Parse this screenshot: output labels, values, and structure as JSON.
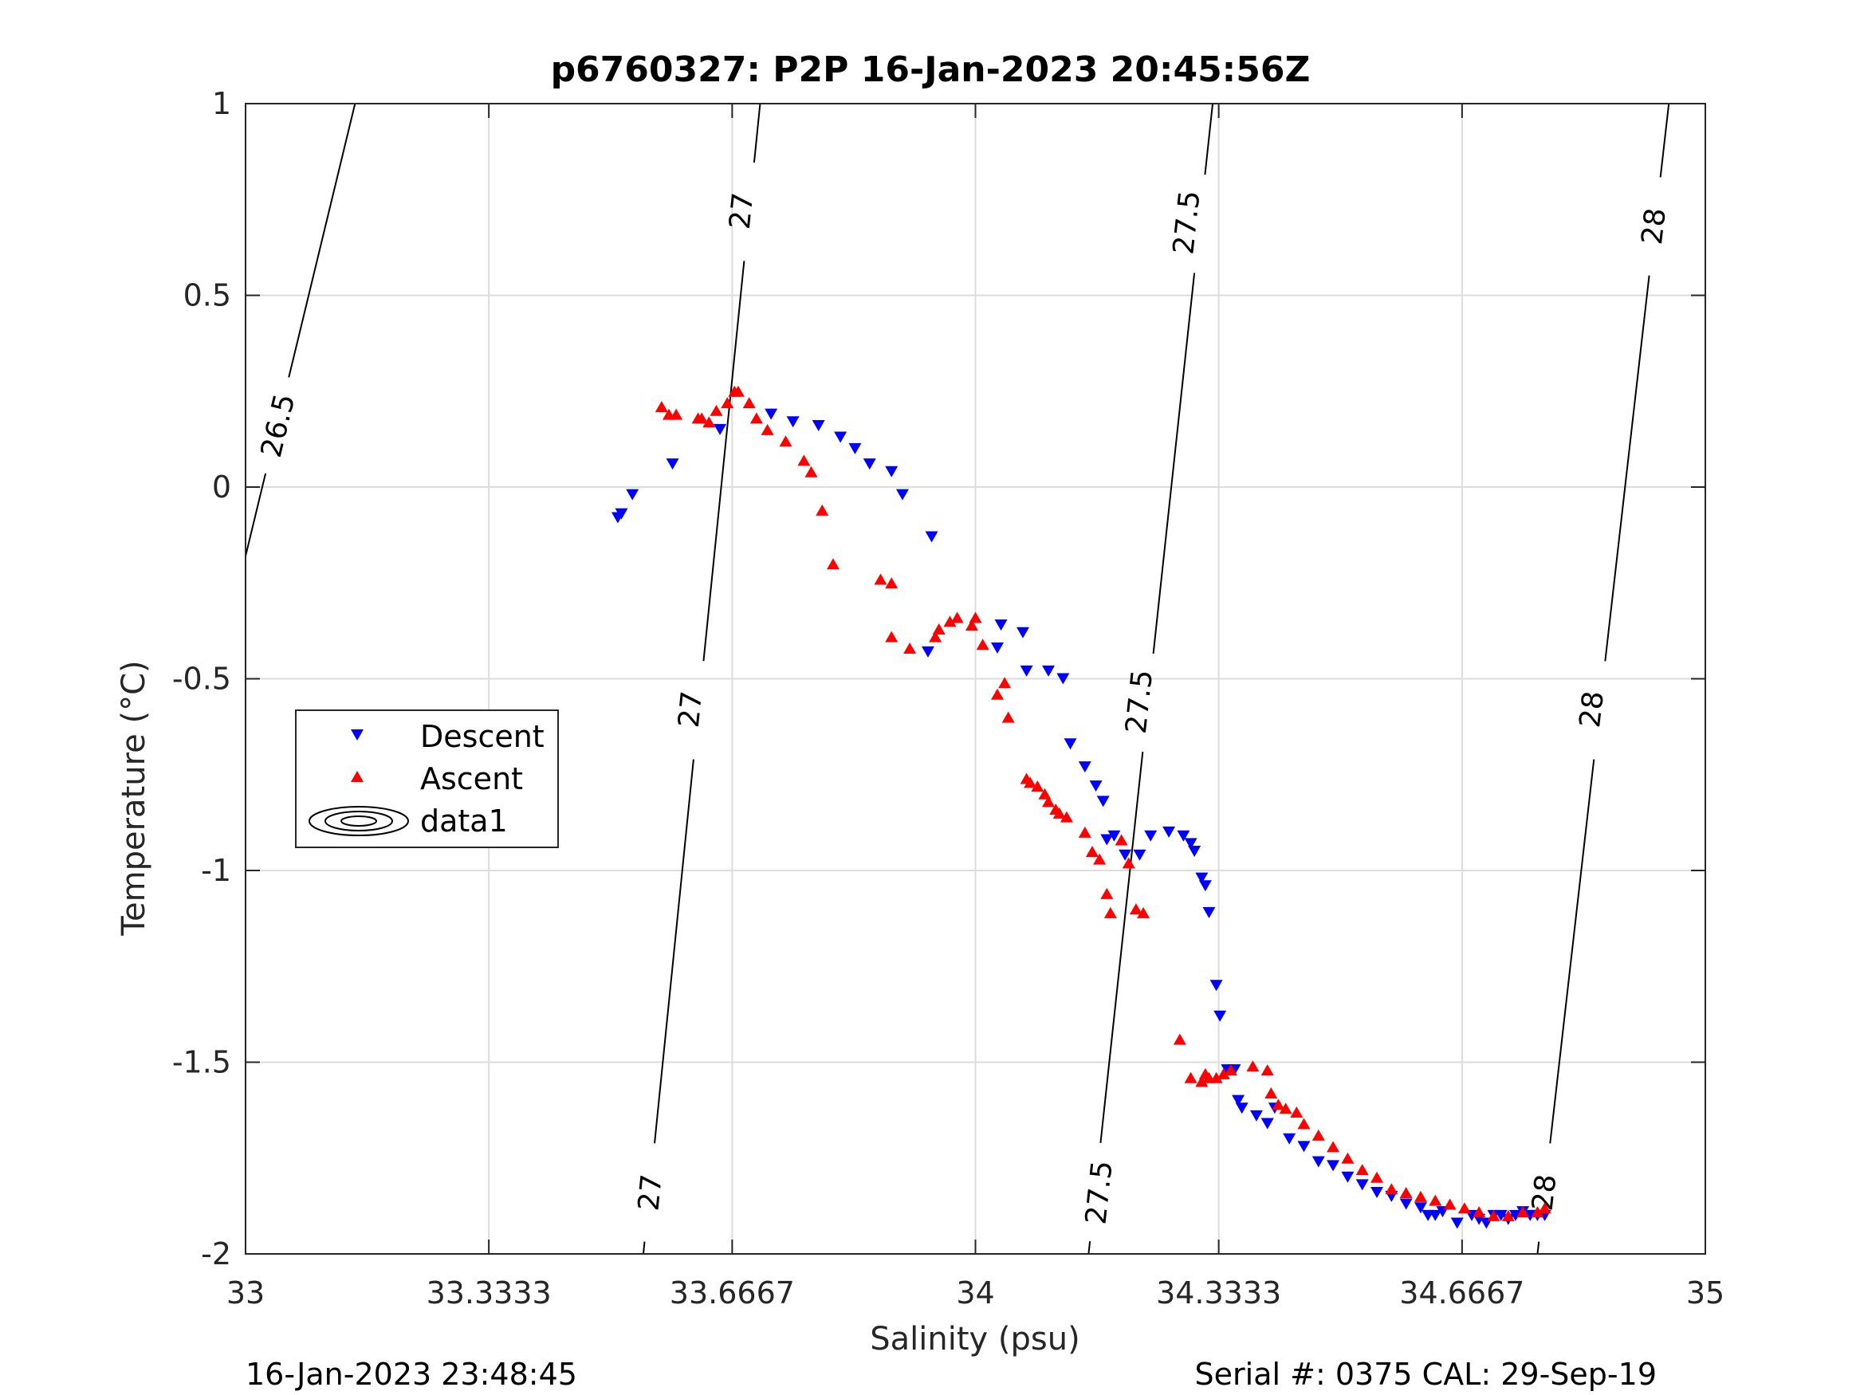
{
  "chart_data": {
    "type": "scatter",
    "title": "p6760327: P2P 16-Jan-2023 20:45:56Z",
    "xlabel": "Salinity (psu)",
    "ylabel": "Temperature (°C)",
    "xlim": [
      33,
      35
    ],
    "ylim": [
      -2,
      1
    ],
    "xticks": [
      33,
      33.3333,
      33.6667,
      34,
      34.3333,
      34.6667,
      35
    ],
    "xtick_labels": [
      "33",
      "33.3333",
      "33.6667",
      "34",
      "34.3333",
      "34.6667",
      "35"
    ],
    "yticks": [
      1,
      0.5,
      0,
      -0.5,
      -1,
      -1.5,
      -2
    ],
    "ytick_labels": [
      "1",
      "0.5",
      "0",
      "-0.5",
      "-1",
      "-1.5",
      "-2"
    ],
    "grid": true,
    "legend_placement": "middle-left",
    "legend": [
      "Descent",
      "Ascent",
      "data1"
    ],
    "colors": {
      "descent": "#0000ff",
      "ascent": "#ff0000",
      "contour": "#000000",
      "grid": "#dcdcdc"
    },
    "series": [
      {
        "name": "Descent",
        "marker": "triangle-down",
        "color": "#0000ff",
        "x": [
          33.51,
          33.515,
          33.53,
          33.585,
          33.65,
          33.72,
          33.75,
          33.785,
          33.815,
          33.835,
          33.855,
          33.885,
          33.9,
          33.94,
          33.935,
          34.03,
          34.035,
          34.065,
          34.07,
          34.1,
          34.12,
          34.13,
          34.15,
          34.165,
          34.175,
          34.19,
          34.18,
          34.205,
          34.225,
          34.24,
          34.265,
          34.285,
          34.295,
          34.3,
          34.31,
          34.315,
          34.32,
          34.33,
          34.335,
          34.345,
          34.355,
          34.36,
          34.365,
          34.385,
          34.4,
          34.4,
          34.41,
          34.43,
          34.45,
          34.47,
          34.49,
          34.51,
          34.53,
          34.55,
          34.57,
          34.59,
          34.61,
          34.62,
          34.63,
          34.64,
          34.66,
          34.68,
          34.69,
          34.7,
          34.71,
          34.72,
          34.73,
          34.74,
          34.75,
          34.76,
          34.77,
          34.78
        ],
        "y": [
          -0.08,
          -0.07,
          -0.02,
          0.06,
          0.15,
          0.19,
          0.17,
          0.16,
          0.13,
          0.1,
          0.06,
          0.04,
          -0.02,
          -0.13,
          -0.43,
          -0.42,
          -0.36,
          -0.38,
          -0.48,
          -0.48,
          -0.5,
          -0.67,
          -0.73,
          -0.78,
          -0.82,
          -0.91,
          -0.92,
          -0.96,
          -0.96,
          -0.91,
          -0.9,
          -0.91,
          -0.93,
          -0.95,
          -1.02,
          -1.04,
          -1.11,
          -1.3,
          -1.38,
          -1.52,
          -1.52,
          -1.6,
          -1.62,
          -1.64,
          -1.66,
          -1.66,
          -1.62,
          -1.7,
          -1.72,
          -1.76,
          -1.77,
          -1.8,
          -1.82,
          -1.84,
          -1.85,
          -1.87,
          -1.88,
          -1.9,
          -1.9,
          -1.89,
          -1.92,
          -1.9,
          -1.91,
          -1.92,
          -1.9,
          -1.9,
          -1.91,
          -1.9,
          -1.89,
          -1.9,
          -1.9,
          -1.9
        ]
      },
      {
        "name": "Ascent",
        "marker": "triangle-up",
        "color": "#ff0000",
        "x": [
          33.57,
          33.58,
          33.59,
          33.62,
          33.625,
          33.635,
          33.645,
          33.66,
          33.67,
          33.675,
          33.69,
          33.7,
          33.715,
          33.74,
          33.765,
          33.775,
          33.79,
          33.805,
          33.87,
          33.885,
          33.885,
          33.91,
          33.945,
          33.95,
          33.965,
          33.975,
          34.0,
          33.995,
          34.01,
          34.03,
          34.04,
          34.045,
          34.07,
          34.075,
          34.085,
          34.095,
          34.1,
          34.11,
          34.115,
          34.125,
          34.15,
          34.16,
          34.17,
          34.18,
          34.185,
          34.2,
          34.21,
          34.22,
          34.23,
          34.28,
          34.295,
          34.31,
          34.315,
          34.32,
          34.33,
          34.34,
          34.35,
          34.38,
          34.4,
          34.405,
          34.415,
          34.425,
          34.44,
          34.45,
          34.47,
          34.49,
          34.51,
          34.53,
          34.55,
          34.57,
          34.59,
          34.61,
          34.63,
          34.65,
          34.67,
          34.69,
          34.71,
          34.73,
          34.75,
          34.77,
          34.78
        ],
        "y": [
          0.21,
          0.19,
          0.19,
          0.18,
          0.18,
          0.17,
          0.2,
          0.22,
          0.25,
          0.25,
          0.22,
          0.18,
          0.15,
          0.12,
          0.07,
          0.04,
          -0.06,
          -0.2,
          -0.24,
          -0.25,
          -0.39,
          -0.42,
          -0.39,
          -0.37,
          -0.35,
          -0.34,
          -0.34,
          -0.36,
          -0.41,
          -0.54,
          -0.51,
          -0.6,
          -0.76,
          -0.77,
          -0.78,
          -0.8,
          -0.82,
          -0.84,
          -0.85,
          -0.86,
          -0.9,
          -0.95,
          -0.97,
          -1.06,
          -1.11,
          -0.92,
          -0.98,
          -1.1,
          -1.11,
          -1.44,
          -1.54,
          -1.55,
          -1.53,
          -1.54,
          -1.54,
          -1.53,
          -1.52,
          -1.51,
          -1.52,
          -1.58,
          -1.61,
          -1.62,
          -1.63,
          -1.66,
          -1.69,
          -1.72,
          -1.75,
          -1.78,
          -1.8,
          -1.83,
          -1.84,
          -1.85,
          -1.86,
          -1.87,
          -1.88,
          -1.89,
          -1.9,
          -1.9,
          -1.89,
          -1.89,
          -1.88
        ]
      }
    ],
    "contours": [
      {
        "level": "26.5",
        "labels": [
          {
            "x": 33.045,
            "y": 0.16
          }
        ],
        "points": [
          [
            33.0,
            -0.18
          ],
          [
            33.15,
            1.0
          ]
        ]
      },
      {
        "level": "27",
        "labels": [
          {
            "x": 33.68,
            "y": 0.72
          },
          {
            "x": 33.61,
            "y": -0.58
          },
          {
            "x": 33.555,
            "y": -1.84
          }
        ],
        "points": [
          [
            33.545,
            -2.0
          ],
          [
            33.705,
            1.0
          ]
        ]
      },
      {
        "level": "27.5",
        "labels": [
          {
            "x": 34.29,
            "y": 0.69
          },
          {
            "x": 34.225,
            "y": -0.56
          },
          {
            "x": 34.17,
            "y": -1.84
          }
        ],
        "points": [
          [
            34.155,
            -2.0
          ],
          [
            34.325,
            1.0
          ]
        ]
      },
      {
        "level": "28",
        "labels": [
          {
            "x": 34.93,
            "y": 0.68
          },
          {
            "x": 34.845,
            "y": -0.58
          },
          {
            "x": 34.78,
            "y": -1.84
          }
        ],
        "points": [
          [
            34.77,
            -2.0
          ],
          [
            34.95,
            1.0
          ]
        ]
      }
    ]
  },
  "footer": {
    "date": "16-Jan-2023 23:48:45",
    "serial": "Serial #: 0375  CAL: 29-Sep-19"
  }
}
